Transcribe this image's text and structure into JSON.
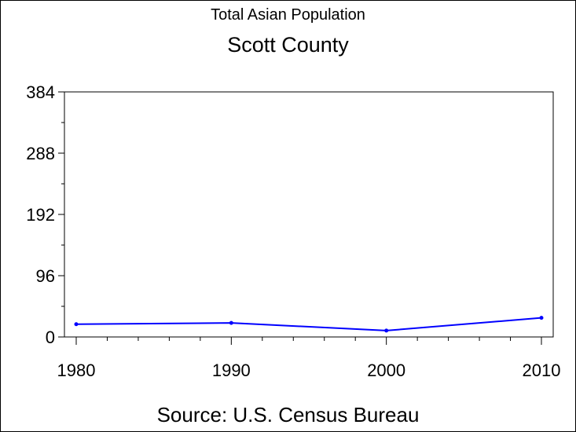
{
  "chart_data": {
    "type": "line",
    "title": "Total Asian Population",
    "subtitle": "Scott County",
    "source": "Source: U.S. Census Bureau",
    "x": [
      1980,
      1990,
      2000,
      2010
    ],
    "x_tick_labels": [
      "1980",
      "1990",
      "2000",
      "2010"
    ],
    "xlim": [
      1980,
      2010
    ],
    "y_tick_labels": [
      "0",
      "96",
      "192",
      "288",
      "384"
    ],
    "y_ticks": [
      0,
      96,
      192,
      288,
      384
    ],
    "ylim": [
      0,
      384
    ],
    "series": [
      {
        "values": [
          20,
          22,
          10,
          30
        ],
        "color": "#0000ff"
      }
    ],
    "grid": false
  }
}
